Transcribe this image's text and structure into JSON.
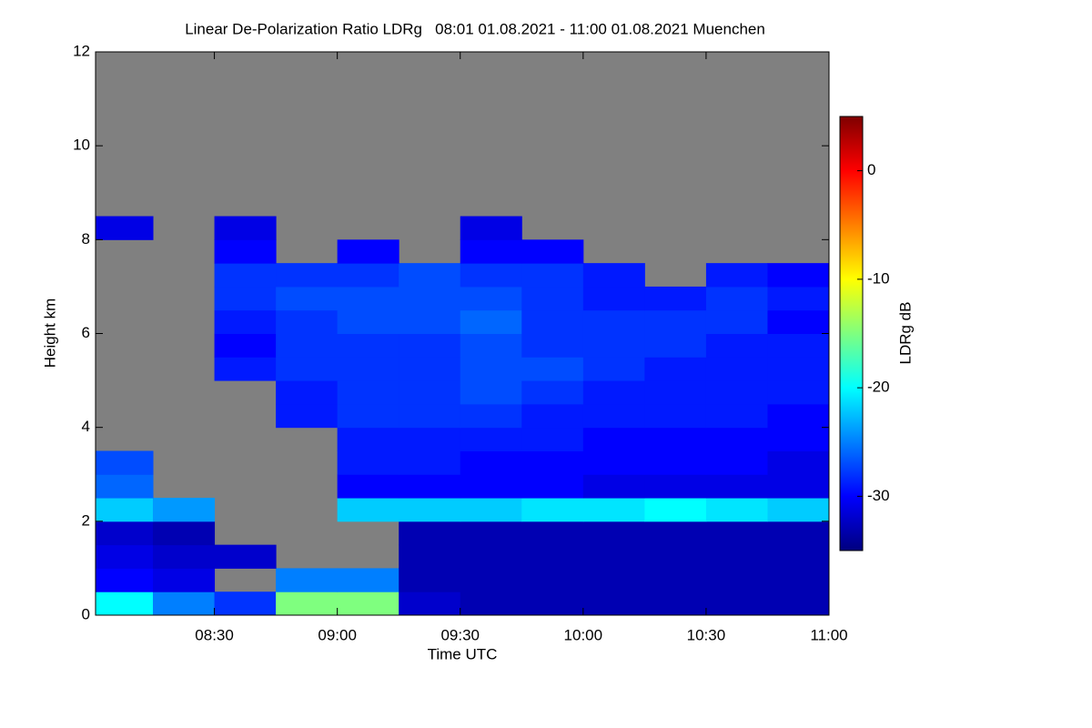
{
  "chart_data": {
    "type": "heatmap",
    "title": "Linear De-Polarization Ratio LDRg   08:01 01.08.2021 - 11:00 01.08.2021 Muenchen",
    "xlabel": "Time UTC",
    "ylabel": "Height km",
    "colorbar_label": "LDRg dB",
    "xlim": [
      8.0167,
      11.0
    ],
    "xticks": [
      {
        "value": 8.5,
        "label": "08:30"
      },
      {
        "value": 9.0,
        "label": "09:00"
      },
      {
        "value": 9.5,
        "label": "09:30"
      },
      {
        "value": 10.0,
        "label": "10:00"
      },
      {
        "value": 10.5,
        "label": "10:30"
      },
      {
        "value": 11.0,
        "label": "11:00"
      }
    ],
    "ylim": [
      0,
      12
    ],
    "yticks": [
      0,
      2,
      4,
      6,
      8,
      10,
      12
    ],
    "clim": [
      -35,
      5
    ],
    "cticks": [
      0,
      -10,
      -20,
      -30
    ],
    "missing_color": "#808080",
    "colormap": [
      "#00007f",
      "#0000ff",
      "#007fff",
      "#00ffff",
      "#7fff7f",
      "#ffff00",
      "#ff7f00",
      "#ff0000",
      "#7f0000"
    ],
    "x_bins": [
      8.0167,
      8.25,
      8.5,
      8.75,
      9.0,
      9.25,
      9.5,
      9.75,
      10.0,
      10.25,
      10.5,
      10.75,
      11.0
    ],
    "y_bins": [
      0,
      0.5,
      1,
      1.5,
      2,
      2.5,
      3,
      3.5,
      4,
      4.5,
      5,
      5.5,
      6,
      6.5,
      7,
      7.5,
      8,
      8.5
    ],
    "z": [
      [
        -20,
        -25,
        -28,
        -15,
        -15,
        -32,
        -33,
        -33,
        -33,
        -33,
        -33,
        -33
      ],
      [
        -30,
        -31,
        null,
        -25,
        -25,
        -33,
        -33,
        -33,
        -33,
        -33,
        -33,
        -33
      ],
      [
        -31,
        -32,
        -32,
        null,
        null,
        -33,
        -33,
        -33,
        -33,
        -33,
        -33,
        -33
      ],
      [
        -32,
        -33,
        null,
        null,
        null,
        -33,
        -33,
        -33,
        -33,
        -33,
        -33,
        -33
      ],
      [
        -22,
        -24,
        null,
        null,
        -22,
        -22,
        -22,
        -21,
        -21,
        -20,
        -21,
        -22
      ],
      [
        -26,
        null,
        null,
        null,
        -30,
        -30,
        -30,
        -30,
        -31,
        -31,
        -31,
        -31
      ],
      [
        -27,
        null,
        null,
        null,
        -29,
        -29,
        -30,
        -30,
        -30,
        -30,
        -30,
        -31
      ],
      [
        null,
        null,
        null,
        null,
        -29,
        -29,
        -29,
        -29,
        -30,
        -30,
        -30,
        -30
      ],
      [
        null,
        null,
        null,
        -29,
        -28,
        -28,
        -28,
        -29,
        -29,
        -29,
        -29,
        -30
      ],
      [
        null,
        null,
        null,
        -29,
        -28,
        -28,
        -27,
        -28,
        -29,
        -29,
        -29,
        -29
      ],
      [
        null,
        null,
        -29,
        -28,
        -28,
        -28,
        -27,
        -27,
        -28,
        -29,
        -29,
        -29
      ],
      [
        null,
        null,
        -30,
        -28,
        -28,
        -28,
        -27,
        -28,
        -28,
        -28,
        -29,
        -29
      ],
      [
        null,
        null,
        -29,
        -28,
        -27,
        -27,
        -26,
        -28,
        -28,
        -28,
        -28,
        -30
      ],
      [
        null,
        null,
        -28,
        -27,
        -27,
        -27,
        -27,
        -28,
        -29,
        -29,
        -28,
        -29
      ],
      [
        null,
        null,
        -28,
        -28,
        -28,
        -27,
        -28,
        -28,
        -29,
        null,
        -29,
        -30
      ],
      [
        null,
        null,
        -30,
        null,
        -30,
        null,
        -30,
        -30,
        null,
        null,
        null,
        null
      ],
      [
        -31,
        null,
        -31,
        null,
        null,
        null,
        -31,
        null,
        null,
        null,
        null,
        null
      ]
    ]
  }
}
